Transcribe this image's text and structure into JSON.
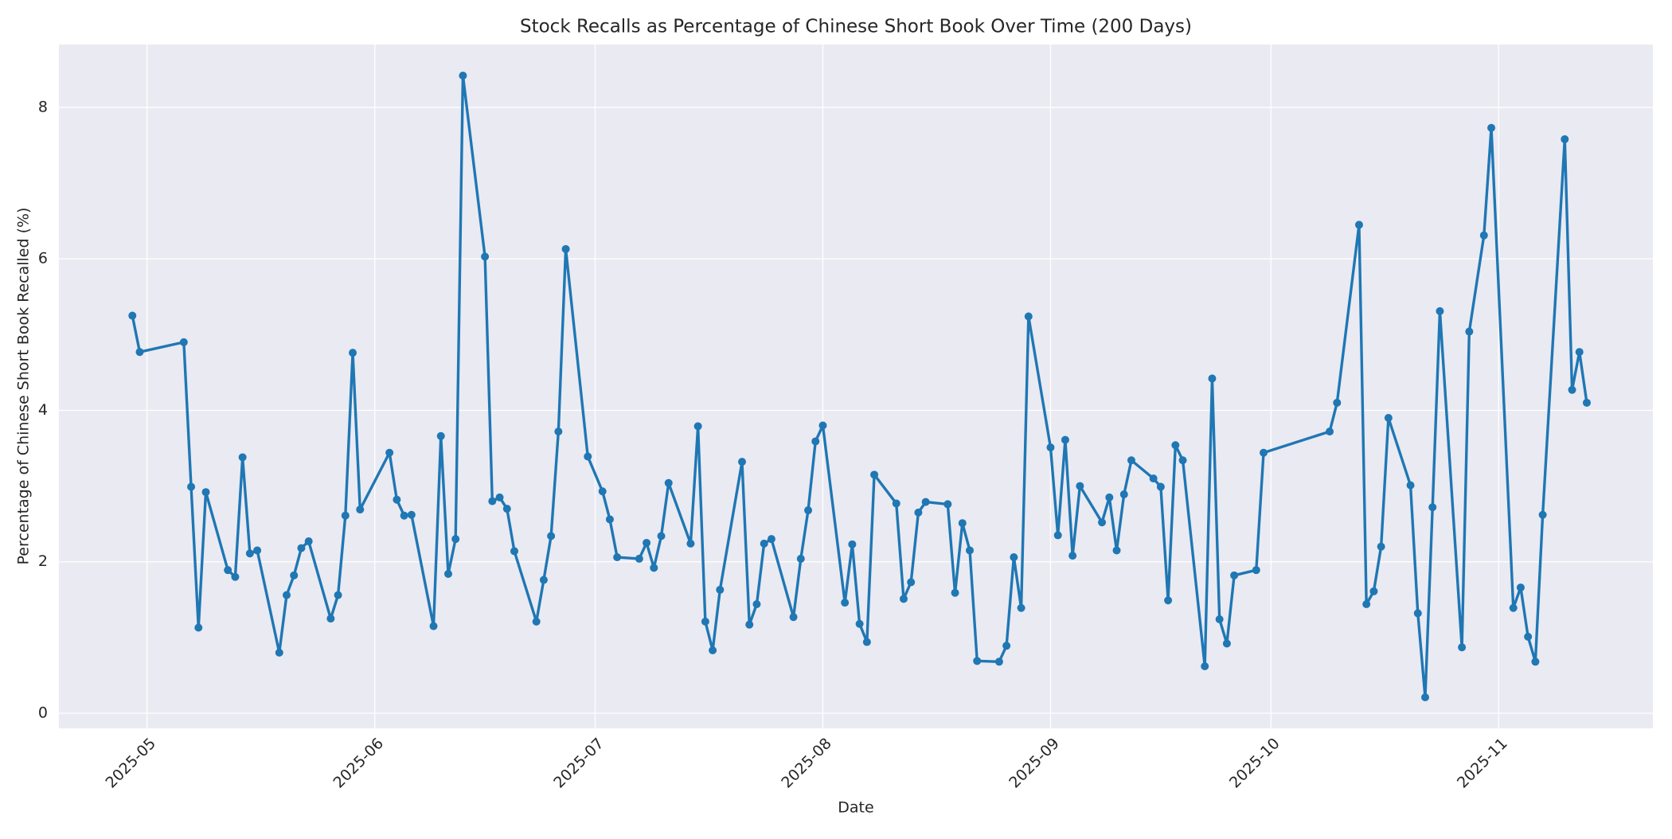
{
  "chart_data": {
    "type": "line",
    "title": "Stock Recalls as Percentage of Chinese Short Book Over Time (200 Days)",
    "xlabel": "Date",
    "ylabel": "Percentage of Chinese Short Book Recalled (%)",
    "color": "#1f77b4",
    "grid": true,
    "markers": true,
    "x": [
      "2025-04-29",
      "2025-04-30",
      "2025-05-06",
      "2025-05-07",
      "2025-05-08",
      "2025-05-09",
      "2025-05-12",
      "2025-05-13",
      "2025-05-14",
      "2025-05-15",
      "2025-05-16",
      "2025-05-19",
      "2025-05-20",
      "2025-05-21",
      "2025-05-22",
      "2025-05-23",
      "2025-05-26",
      "2025-05-27",
      "2025-05-28",
      "2025-05-29",
      "2025-05-30",
      "2025-06-03",
      "2025-06-04",
      "2025-06-05",
      "2025-06-06",
      "2025-06-09",
      "2025-06-10",
      "2025-06-11",
      "2025-06-12",
      "2025-06-13",
      "2025-06-16",
      "2025-06-17",
      "2025-06-18",
      "2025-06-19",
      "2025-06-20",
      "2025-06-23",
      "2025-06-24",
      "2025-06-25",
      "2025-06-26",
      "2025-06-27",
      "2025-06-30",
      "2025-07-02",
      "2025-07-03",
      "2025-07-04",
      "2025-07-07",
      "2025-07-08",
      "2025-07-09",
      "2025-07-10",
      "2025-07-11",
      "2025-07-14",
      "2025-07-15",
      "2025-07-16",
      "2025-07-17",
      "2025-07-18",
      "2025-07-21",
      "2025-07-22",
      "2025-07-23",
      "2025-07-24",
      "2025-07-25",
      "2025-07-28",
      "2025-07-29",
      "2025-07-30",
      "2025-07-31",
      "2025-08-01",
      "2025-08-04",
      "2025-08-05",
      "2025-08-06",
      "2025-08-07",
      "2025-08-08",
      "2025-08-11",
      "2025-08-12",
      "2025-08-13",
      "2025-08-14",
      "2025-08-15",
      "2025-08-18",
      "2025-08-19",
      "2025-08-20",
      "2025-08-21",
      "2025-08-22",
      "2025-08-25",
      "2025-08-26",
      "2025-08-27",
      "2025-08-28",
      "2025-08-29",
      "2025-09-01",
      "2025-09-02",
      "2025-09-03",
      "2025-09-04",
      "2025-09-05",
      "2025-09-08",
      "2025-09-09",
      "2025-09-10",
      "2025-09-11",
      "2025-09-12",
      "2025-09-15",
      "2025-09-16",
      "2025-09-17",
      "2025-09-18",
      "2025-09-19",
      "2025-09-22",
      "2025-09-23",
      "2025-09-24",
      "2025-09-25",
      "2025-09-26",
      "2025-09-29",
      "2025-09-30",
      "2025-10-09",
      "2025-10-10",
      "2025-10-13",
      "2025-10-14",
      "2025-10-15",
      "2025-10-16",
      "2025-10-17",
      "2025-10-20",
      "2025-10-21",
      "2025-10-22",
      "2025-10-23",
      "2025-10-24",
      "2025-10-27",
      "2025-10-28",
      "2025-10-30",
      "2025-10-31",
      "2025-11-03",
      "2025-11-04",
      "2025-11-05",
      "2025-11-06",
      "2025-11-07",
      "2025-11-10",
      "2025-11-11",
      "2025-11-12",
      "2025-11-13"
    ],
    "values": [
      5.25,
      4.77,
      4.9,
      2.99,
      1.13,
      2.92,
      1.89,
      1.8,
      3.38,
      2.11,
      2.15,
      0.8,
      1.56,
      1.82,
      2.18,
      2.27,
      1.25,
      1.56,
      2.61,
      4.76,
      2.69,
      3.44,
      2.82,
      2.61,
      2.62,
      1.15,
      3.66,
      1.84,
      2.3,
      8.42,
      6.03,
      2.8,
      2.85,
      2.7,
      2.14,
      1.21,
      1.76,
      2.34,
      3.72,
      6.13,
      3.39,
      2.93,
      2.56,
      2.06,
      2.04,
      2.25,
      1.92,
      2.34,
      3.04,
      2.24,
      3.79,
      1.21,
      0.83,
      1.63,
      3.32,
      1.17,
      1.44,
      2.24,
      2.3,
      1.27,
      2.04,
      2.68,
      3.59,
      3.8,
      1.46,
      2.23,
      1.18,
      0.94,
      3.15,
      2.77,
      1.51,
      1.73,
      2.65,
      2.79,
      2.76,
      1.59,
      2.51,
      2.15,
      0.69,
      0.68,
      0.89,
      2.06,
      1.39,
      5.24,
      3.51,
      2.35,
      3.61,
      2.08,
      3.0,
      2.52,
      2.85,
      2.15,
      2.89,
      3.34,
      3.1,
      2.99,
      1.49,
      3.54,
      3.34,
      0.62,
      4.42,
      1.24,
      0.92,
      1.82,
      1.89,
      3.44,
      3.72,
      4.1,
      6.45,
      1.44,
      1.61,
      2.2,
      3.9,
      3.01,
      1.32,
      0.21,
      2.72,
      5.31,
      0.87,
      5.04,
      6.31,
      7.73,
      1.39,
      1.66,
      1.01,
      0.68,
      2.62,
      7.58,
      4.27,
      4.77,
      4.1
    ],
    "xlim": [
      "2025-04-19",
      "2025-11-22"
    ],
    "xticks": [
      {
        "value": "2025-05-01",
        "label": "2025-05"
      },
      {
        "value": "2025-06-01",
        "label": "2025-06"
      },
      {
        "value": "2025-07-01",
        "label": "2025-07"
      },
      {
        "value": "2025-08-01",
        "label": "2025-08"
      },
      {
        "value": "2025-09-01",
        "label": "2025-09"
      },
      {
        "value": "2025-10-01",
        "label": "2025-10"
      },
      {
        "value": "2025-11-01",
        "label": "2025-11"
      }
    ],
    "ylim": [
      -0.2,
      8.83
    ],
    "yticks": [
      0,
      2,
      4,
      6,
      8
    ]
  }
}
